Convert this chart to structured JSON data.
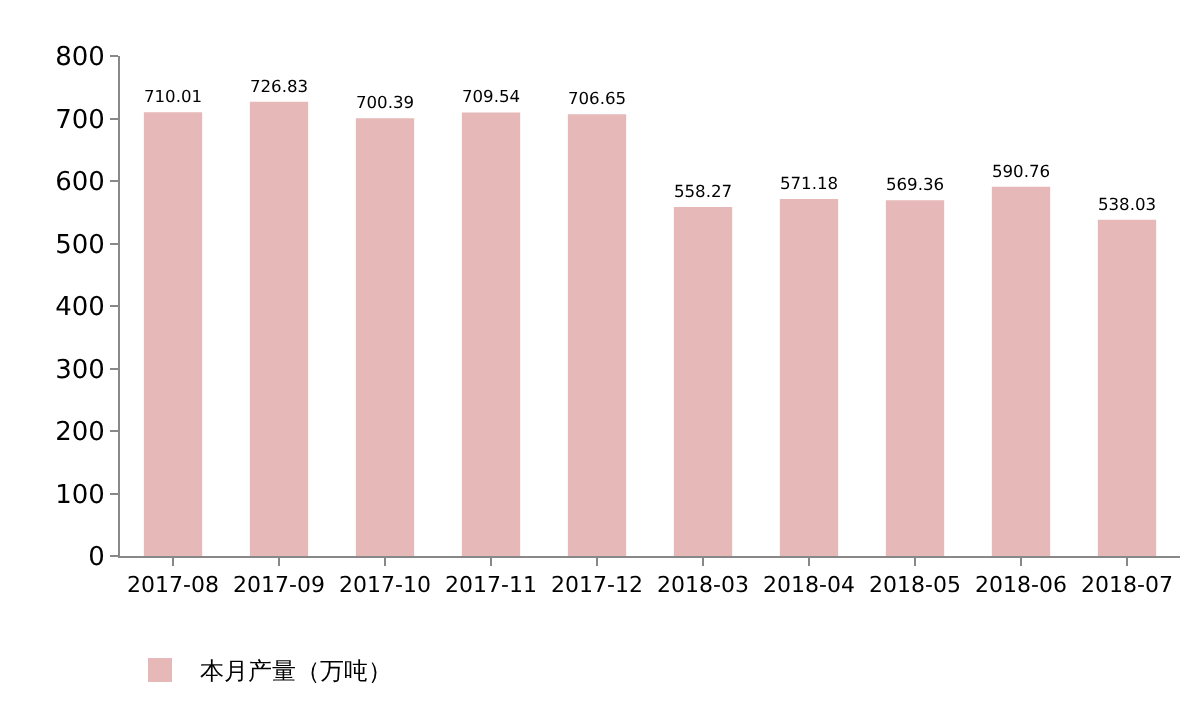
{
  "chart_data": {
    "type": "bar",
    "categories": [
      "2017-08",
      "2017-09",
      "2017-10",
      "2017-11",
      "2017-12",
      "2018-03",
      "2018-04",
      "2018-05",
      "2018-06",
      "2018-07"
    ],
    "series": [
      {
        "name": "本月产量（万吨）",
        "color": "#e6b9b8",
        "values": [
          710.01,
          726.83,
          700.39,
          709.54,
          706.65,
          558.27,
          571.18,
          569.36,
          590.76,
          538.03
        ]
      }
    ],
    "ylim": [
      0,
      800
    ],
    "yticks": [
      0,
      100,
      200,
      300,
      400,
      500,
      600,
      700,
      800
    ],
    "data_labels": true,
    "grid": false,
    "legend": "bottom left"
  }
}
